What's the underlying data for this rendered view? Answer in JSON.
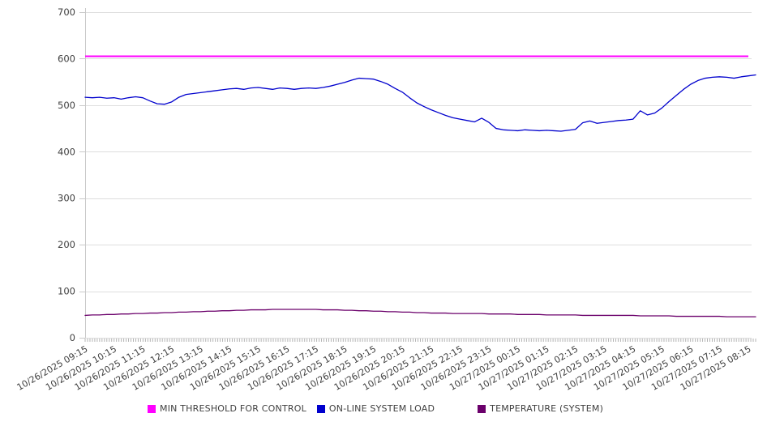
{
  "chart_data": {
    "type": "line",
    "title": "",
    "xlabel": "",
    "ylabel": "",
    "ylim": [
      0,
      700
    ],
    "y_ticks": [
      0,
      100,
      200,
      300,
      400,
      500,
      600,
      700
    ],
    "grid": true,
    "legend_position": "bottom",
    "axis_text_color": "#404040",
    "grid_color": "#dedede",
    "axis_line_color": "#c9c9c9",
    "minor_tick_color": "#b3b3b3",
    "x_minor_ticks": 279,
    "samples_per_label": 4,
    "x_labels": [
      "10/26/2025 09:15",
      "10/26/2025 10:15",
      "10/26/2025 11:15",
      "10/26/2025 12:15",
      "10/26/2025 13:15",
      "10/26/2025 14:15",
      "10/26/2025 15:15",
      "10/26/2025 16:15",
      "10/26/2025 17:15",
      "10/26/2025 18:15",
      "10/26/2025 19:15",
      "10/26/2025 20:15",
      "10/26/2025 21:15",
      "10/26/2025 22:15",
      "10/26/2025 23:15",
      "10/27/2025 00:15",
      "10/27/2025 01:15",
      "10/27/2025 02:15",
      "10/27/2025 03:15",
      "10/27/2025 04:15",
      "10/27/2025 05:15",
      "10/27/2025 06:15",
      "10/27/2025 07:15",
      "10/27/2025 08:15"
    ],
    "series": [
      {
        "name": "MIN THRESHOLD FOR CONTROL",
        "color": "#ff00ff",
        "stroke_width": 2,
        "constant": 605
      },
      {
        "name": "ON-LINE SYSTEM LOAD",
        "color": "#0000cd",
        "stroke_width": 1.3,
        "values": [
          517,
          516,
          517,
          515,
          516,
          513,
          516,
          518,
          516,
          509,
          503,
          502,
          507,
          517,
          523,
          525,
          527,
          529,
          531,
          533,
          535,
          536,
          534,
          537,
          538,
          536,
          534,
          537,
          536,
          534,
          536,
          537,
          536,
          538,
          541,
          545,
          549,
          554,
          558,
          557,
          556,
          551,
          545,
          536,
          528,
          516,
          505,
          497,
          490,
          484,
          478,
          473,
          470,
          467,
          464,
          472,
          463,
          450,
          447,
          446,
          445,
          447,
          446,
          445,
          446,
          445,
          444,
          446,
          448,
          462,
          466,
          461,
          463,
          465,
          467,
          468,
          470,
          488,
          479,
          483,
          494,
          508,
          521,
          534,
          545,
          553,
          558,
          560,
          561,
          560,
          558,
          561,
          563,
          565
        ]
      },
      {
        "name": "TEMPERATURE (SYSTEM)",
        "color": "#6b006b",
        "stroke_width": 1.3,
        "values": [
          48,
          49,
          49,
          50,
          50,
          51,
          51,
          52,
          52,
          53,
          53,
          54,
          54,
          55,
          55,
          56,
          56,
          57,
          57,
          58,
          58,
          59,
          59,
          60,
          60,
          60,
          61,
          61,
          61,
          61,
          61,
          61,
          61,
          60,
          60,
          60,
          59,
          59,
          58,
          58,
          57,
          57,
          56,
          56,
          55,
          55,
          54,
          54,
          53,
          53,
          53,
          52,
          52,
          52,
          52,
          52,
          51,
          51,
          51,
          51,
          50,
          50,
          50,
          50,
          49,
          49,
          49,
          49,
          49,
          48,
          48,
          48,
          48,
          48,
          48,
          48,
          48,
          47,
          47,
          47,
          47,
          47,
          46,
          46,
          46,
          46,
          46,
          46,
          46,
          45,
          45,
          45,
          45,
          45
        ]
      }
    ]
  }
}
